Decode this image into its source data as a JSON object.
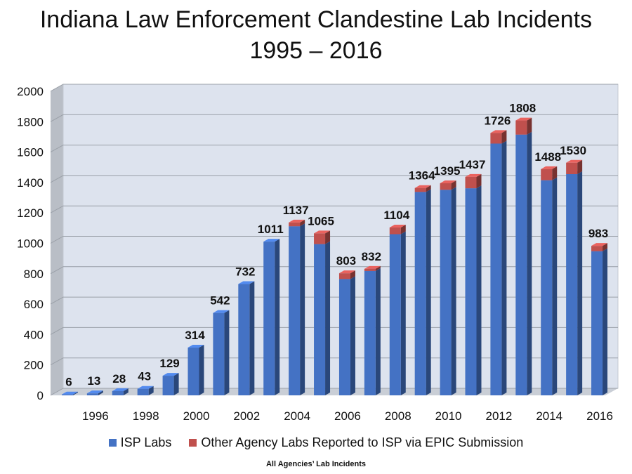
{
  "title": {
    "line1": "Indiana Law Enforcement Clandestine Lab Incidents",
    "line2": "1995 – 2016"
  },
  "footnote": "All Agencies’ Lab Incidents",
  "colors": {
    "isp": "#4472c4",
    "other": "#c0504d",
    "wall": "#dde3ee",
    "grid": "#9aa0a8"
  },
  "chart_data": {
    "type": "bar",
    "stacked": true,
    "x": [
      1995,
      1996,
      1997,
      1998,
      1999,
      2000,
      2001,
      2002,
      2003,
      2004,
      2005,
      2006,
      2007,
      2008,
      2009,
      2010,
      2011,
      2012,
      2013,
      2014,
      2015,
      2016
    ],
    "x_tick_labels": [
      "1996",
      "1998",
      "2000",
      "2002",
      "2004",
      "2006",
      "2008",
      "2010",
      "2012",
      "2014",
      "2016"
    ],
    "series": [
      {
        "name": "ISP Labs",
        "values": [
          6,
          13,
          28,
          43,
          129,
          314,
          542,
          732,
          1011,
          1112,
          995,
          765,
          818,
          1060,
          1338,
          1352,
          1362,
          1656,
          1715,
          1415,
          1455,
          948
        ]
      },
      {
        "name": "Other Agency Labs Reported to ISP via EPIC Submission",
        "values": [
          0,
          0,
          0,
          0,
          0,
          0,
          0,
          0,
          0,
          25,
          70,
          38,
          14,
          44,
          26,
          43,
          75,
          70,
          93,
          73,
          75,
          35
        ]
      }
    ],
    "totals": [
      6,
      13,
      28,
      43,
      129,
      314,
      542,
      732,
      1011,
      1137,
      1065,
      803,
      832,
      1104,
      1364,
      1395,
      1437,
      1726,
      1808,
      1488,
      1530,
      983
    ],
    "ylim": [
      0,
      2000
    ],
    "yticks": [
      0,
      200,
      400,
      600,
      800,
      1000,
      1200,
      1400,
      1600,
      1800,
      2000
    ],
    "grid": true,
    "legend_position": "bottom"
  }
}
